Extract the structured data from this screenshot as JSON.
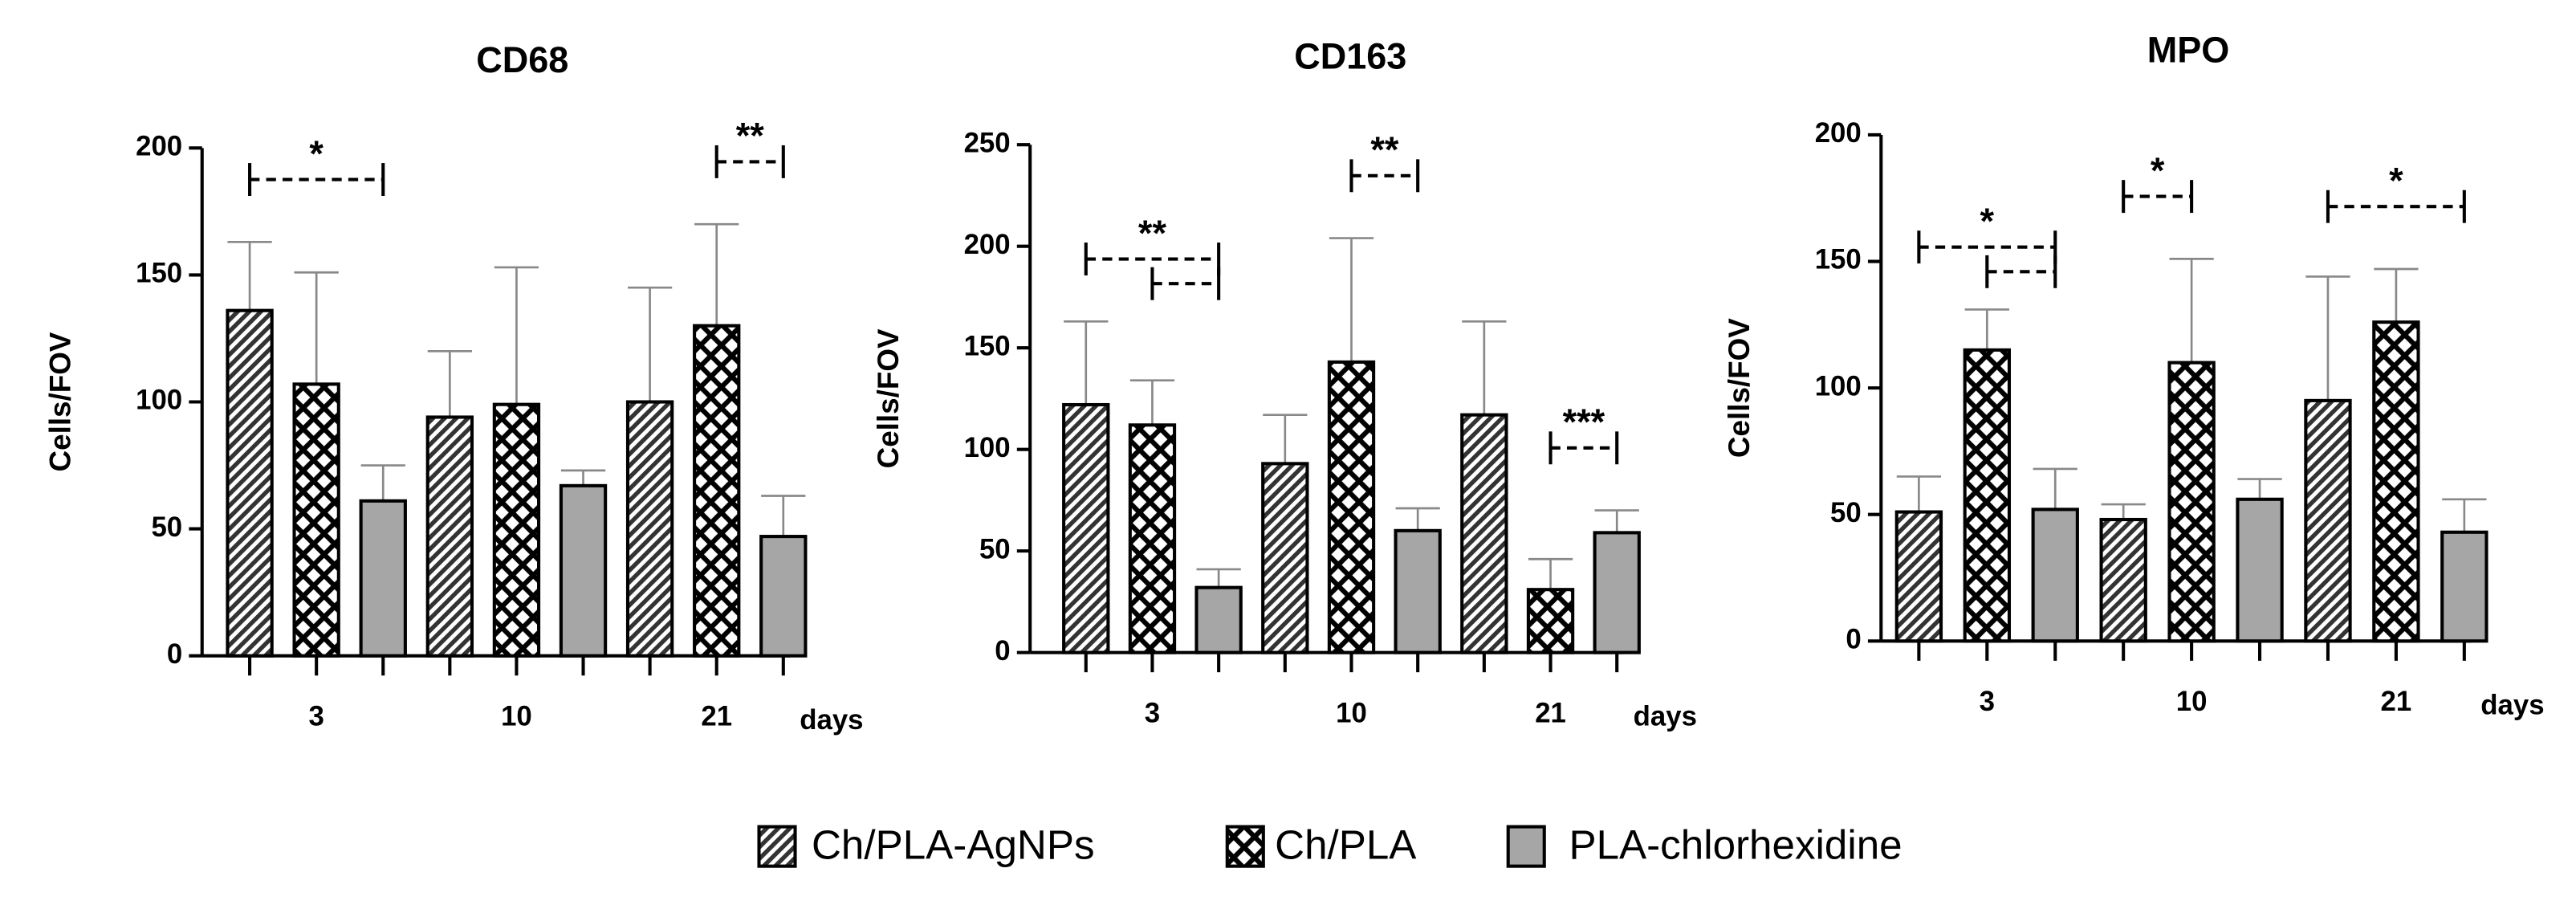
{
  "chart_data": [
    {
      "type": "bar",
      "title": "CD68",
      "y_label": "Cells/FOV",
      "x_unit": "days",
      "categories": [
        "3",
        "10",
        "21"
      ],
      "ylim": [
        0,
        200
      ],
      "yticks": [
        0,
        50,
        100,
        150,
        200
      ],
      "series": [
        {
          "name": "Ch/PLA-AgNPs",
          "color": "#333333",
          "pattern": "hatch",
          "values": [
            136,
            94,
            100
          ],
          "errors": [
            27,
            26,
            45
          ]
        },
        {
          "name": "Ch/PLA",
          "color": "#000000",
          "pattern": "checker",
          "values": [
            107,
            99,
            130
          ],
          "errors": [
            44,
            54,
            40
          ]
        },
        {
          "name": "PLA-chlorhexidine",
          "color": "#a6a6a6",
          "pattern": "solid",
          "values": [
            61,
            67,
            47
          ],
          "errors": [
            14,
            6,
            16
          ]
        }
      ],
      "annotations": [
        {
          "text": "*",
          "category": 0,
          "pairs": [
            [
              0,
              2
            ]
          ]
        },
        {
          "text": "**",
          "category": 2,
          "pairs": [
            [
              1,
              2
            ]
          ]
        }
      ]
    },
    {
      "type": "bar",
      "title": "CD163",
      "y_label": "Cells/FOV",
      "x_unit": "days",
      "categories": [
        "3",
        "10",
        "21"
      ],
      "ylim": [
        0,
        250
      ],
      "yticks": [
        0,
        50,
        100,
        150,
        200,
        250
      ],
      "series": [
        {
          "name": "Ch/PLA-AgNPs",
          "color": "#333333",
          "pattern": "hatch",
          "values": [
            122,
            93,
            117
          ],
          "errors": [
            41,
            24,
            46
          ]
        },
        {
          "name": "Ch/PLA",
          "color": "#000000",
          "pattern": "checker",
          "values": [
            112,
            143,
            31
          ],
          "errors": [
            22,
            61,
            15
          ]
        },
        {
          "name": "PLA-chlorhexidine",
          "color": "#a6a6a6",
          "pattern": "solid",
          "values": [
            32,
            60,
            59
          ],
          "errors": [
            9,
            11,
            11
          ]
        }
      ],
      "annotations": [
        {
          "text": "**",
          "category": 0,
          "pairs": [
            [
              0,
              2
            ],
            [
              1,
              2
            ]
          ]
        },
        {
          "text": "**",
          "category": 1,
          "pairs": [
            [
              1,
              2
            ]
          ]
        },
        {
          "text": "***",
          "category": 2,
          "pairs": [
            [
              1,
              2
            ]
          ]
        }
      ]
    },
    {
      "type": "bar",
      "title": "MPO",
      "y_label": "Cells/FOV",
      "x_unit": "days",
      "categories": [
        "3",
        "10",
        "21"
      ],
      "ylim": [
        0,
        200
      ],
      "yticks": [
        0,
        50,
        100,
        150,
        200
      ],
      "series": [
        {
          "name": "Ch/PLA-AgNPs",
          "color": "#333333",
          "pattern": "hatch",
          "values": [
            51,
            48,
            95
          ],
          "errors": [
            14,
            6,
            49
          ]
        },
        {
          "name": "Ch/PLA",
          "color": "#000000",
          "pattern": "checker",
          "values": [
            115,
            110,
            126
          ],
          "errors": [
            16,
            41,
            21
          ]
        },
        {
          "name": "PLA-chlorhexidine",
          "color": "#a6a6a6",
          "pattern": "solid",
          "values": [
            52,
            56,
            43
          ],
          "errors": [
            16,
            8,
            13
          ]
        }
      ],
      "annotations": [
        {
          "text": "*",
          "category": 0,
          "pairs": [
            [
              0,
              2
            ],
            [
              1,
              2
            ]
          ]
        },
        {
          "text": "*",
          "category": 1,
          "pairs": [
            [
              0,
              1
            ]
          ]
        },
        {
          "text": "*",
          "category": 2,
          "pairs": [
            [
              0,
              2
            ]
          ]
        }
      ]
    }
  ]
}
